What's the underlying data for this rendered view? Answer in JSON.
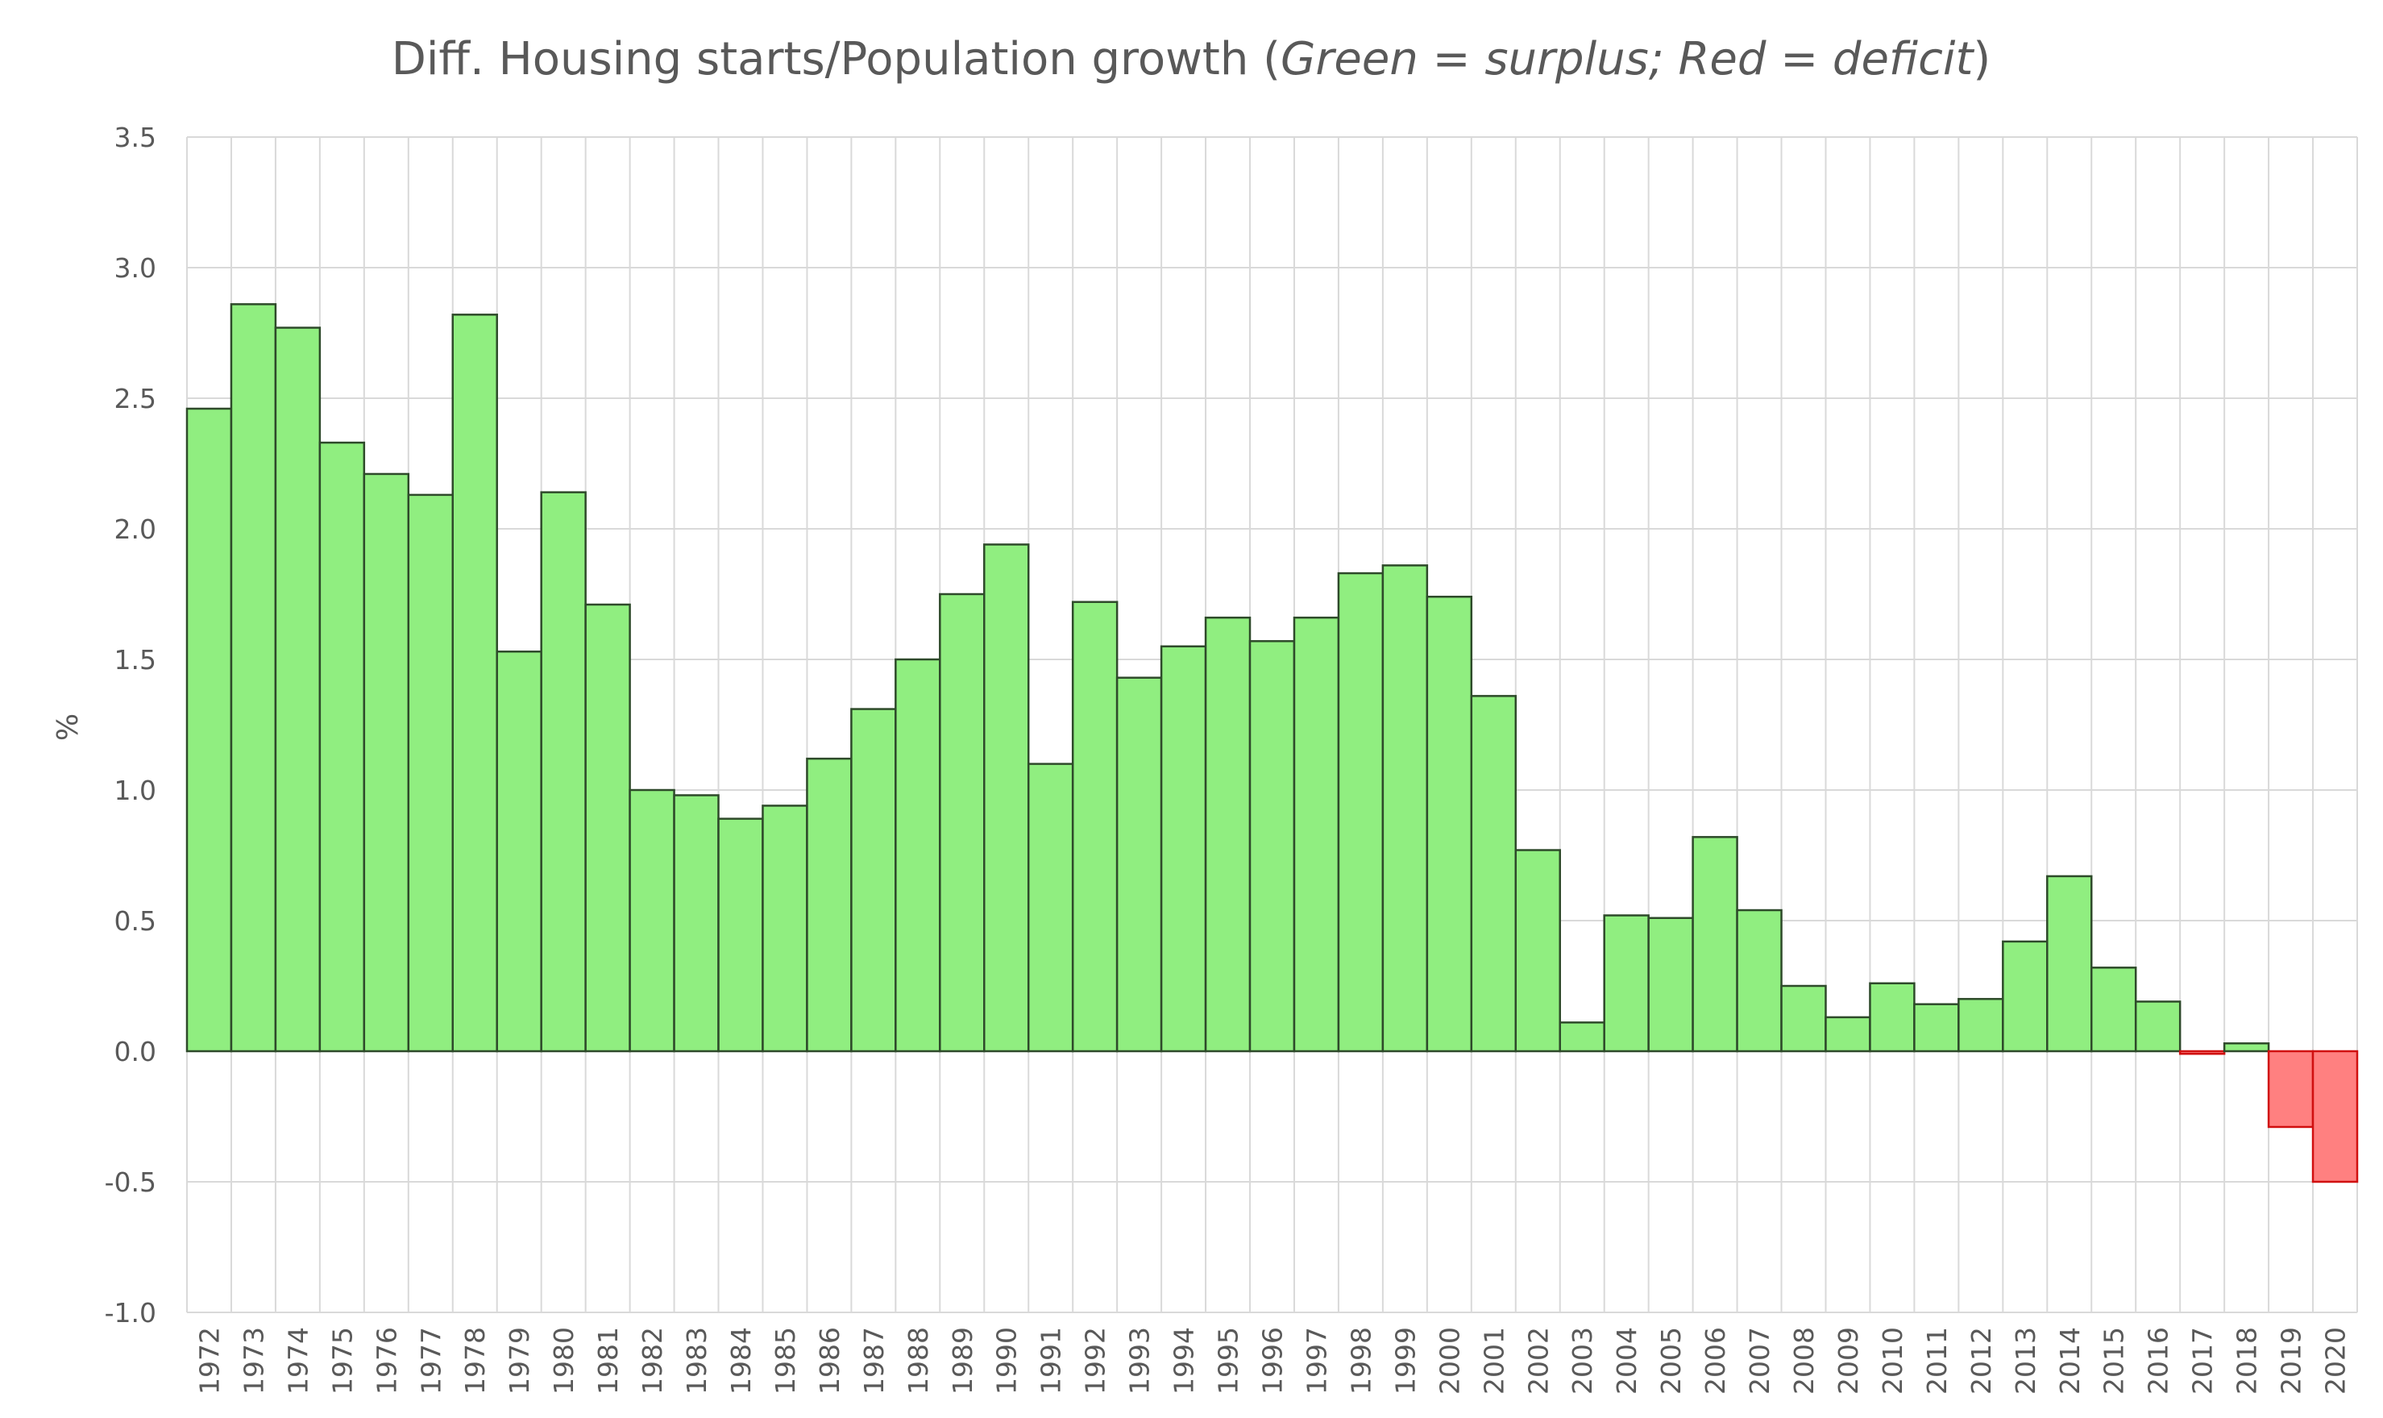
{
  "chart_data": {
    "type": "bar",
    "title": {
      "prefix": "Diff. Housing starts/Population growth (",
      "italic": "Green = surplus; Red = deficit",
      "suffix": ")"
    },
    "xlabel": "",
    "ylabel": "%",
    "ylim": [
      -1.0,
      3.5
    ],
    "y_ticks": [
      "3.5",
      "3.0",
      "2.5",
      "2.0",
      "1.5",
      "1.0",
      "0.5",
      "0.0",
      "-0.5",
      "-1.0"
    ],
    "grid": true,
    "legend": "none",
    "categories": [
      "1972",
      "1973",
      "1974",
      "1975",
      "1976",
      "1977",
      "1978",
      "1979",
      "1980",
      "1981",
      "1982",
      "1983",
      "1984",
      "1985",
      "1986",
      "1987",
      "1988",
      "1989",
      "1990",
      "1991",
      "1992",
      "1993",
      "1994",
      "1995",
      "1996",
      "1997",
      "1998",
      "1999",
      "2000",
      "2001",
      "2002",
      "2003",
      "2004",
      "2005",
      "2006",
      "2007",
      "2008",
      "2009",
      "2010",
      "2011",
      "2012",
      "2013",
      "2014",
      "2015",
      "2016",
      "2017",
      "2018",
      "2019",
      "2020"
    ],
    "values": [
      2.46,
      2.86,
      2.77,
      2.33,
      2.21,
      2.13,
      2.82,
      1.53,
      2.14,
      1.71,
      1.0,
      0.98,
      0.89,
      0.94,
      1.12,
      1.31,
      1.5,
      1.75,
      1.94,
      1.1,
      1.72,
      1.43,
      1.55,
      1.66,
      1.57,
      1.66,
      1.83,
      1.86,
      1.74,
      1.36,
      0.77,
      0.11,
      0.52,
      0.51,
      0.82,
      0.54,
      0.25,
      0.13,
      0.26,
      0.18,
      0.2,
      0.42,
      0.67,
      0.32,
      0.19,
      -0.01,
      0.03,
      -0.29,
      -0.5
    ],
    "colors": {
      "surplus_fill": "#90EE80",
      "surplus_stroke": "#2E4A2A",
      "deficit_fill": "#FF8080",
      "deficit_stroke": "#D01010",
      "grid": "#D9D9D9",
      "text": "#595959"
    }
  }
}
